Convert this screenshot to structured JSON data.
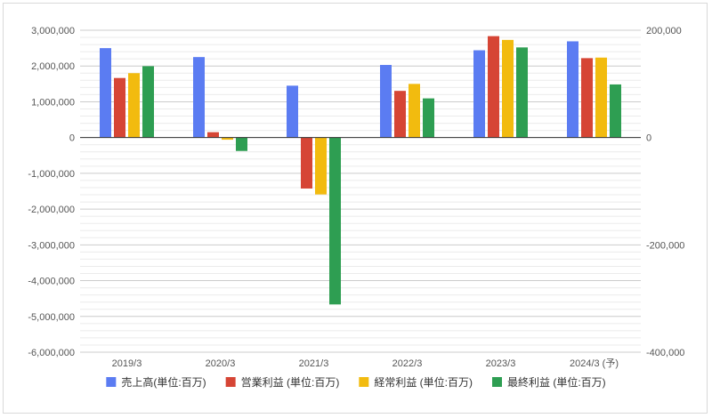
{
  "chart_data": {
    "type": "bar",
    "categories": [
      "2019/3",
      "2020/3",
      "2021/3",
      "2022/3",
      "2023/3",
      "2024/3 (予)"
    ],
    "series": [
      {
        "name": "売上高(単位:百万)",
        "axis": "left",
        "color": "#5b7cf2",
        "values": [
          2500000,
          2250000,
          1450000,
          2030000,
          2440000,
          2690000
        ]
      },
      {
        "name": "営業利益 (単位:百万)",
        "axis": "right",
        "color": "#d64535",
        "values": [
          111000,
          10000,
          -95000,
          87000,
          189000,
          148000
        ]
      },
      {
        "name": "経常利益 (単位:百万)",
        "axis": "right",
        "color": "#f2bb0f",
        "values": [
          120000,
          -4000,
          -106000,
          100000,
          182000,
          149000
        ]
      },
      {
        "name": "最終利益 (単位:百万)",
        "axis": "right",
        "color": "#2e9e52",
        "values": [
          133000,
          -25000,
          -311000,
          73000,
          168000,
          99000
        ]
      }
    ],
    "y_left": {
      "range": [
        -6000000,
        3000000
      ],
      "ticks": [
        "3,000,000",
        "2,000,000",
        "1,000,000",
        "0",
        "-1,000,000",
        "-2,000,000",
        "-3,000,000",
        "-4,000,000",
        "-5,000,000",
        "-6,000,000"
      ]
    },
    "y_right": {
      "range": [
        -400000,
        200000
      ],
      "ticks": [
        "200,000",
        "0",
        "-200,000",
        "-400,000"
      ]
    },
    "grid": true,
    "legend_position": "bottom"
  }
}
